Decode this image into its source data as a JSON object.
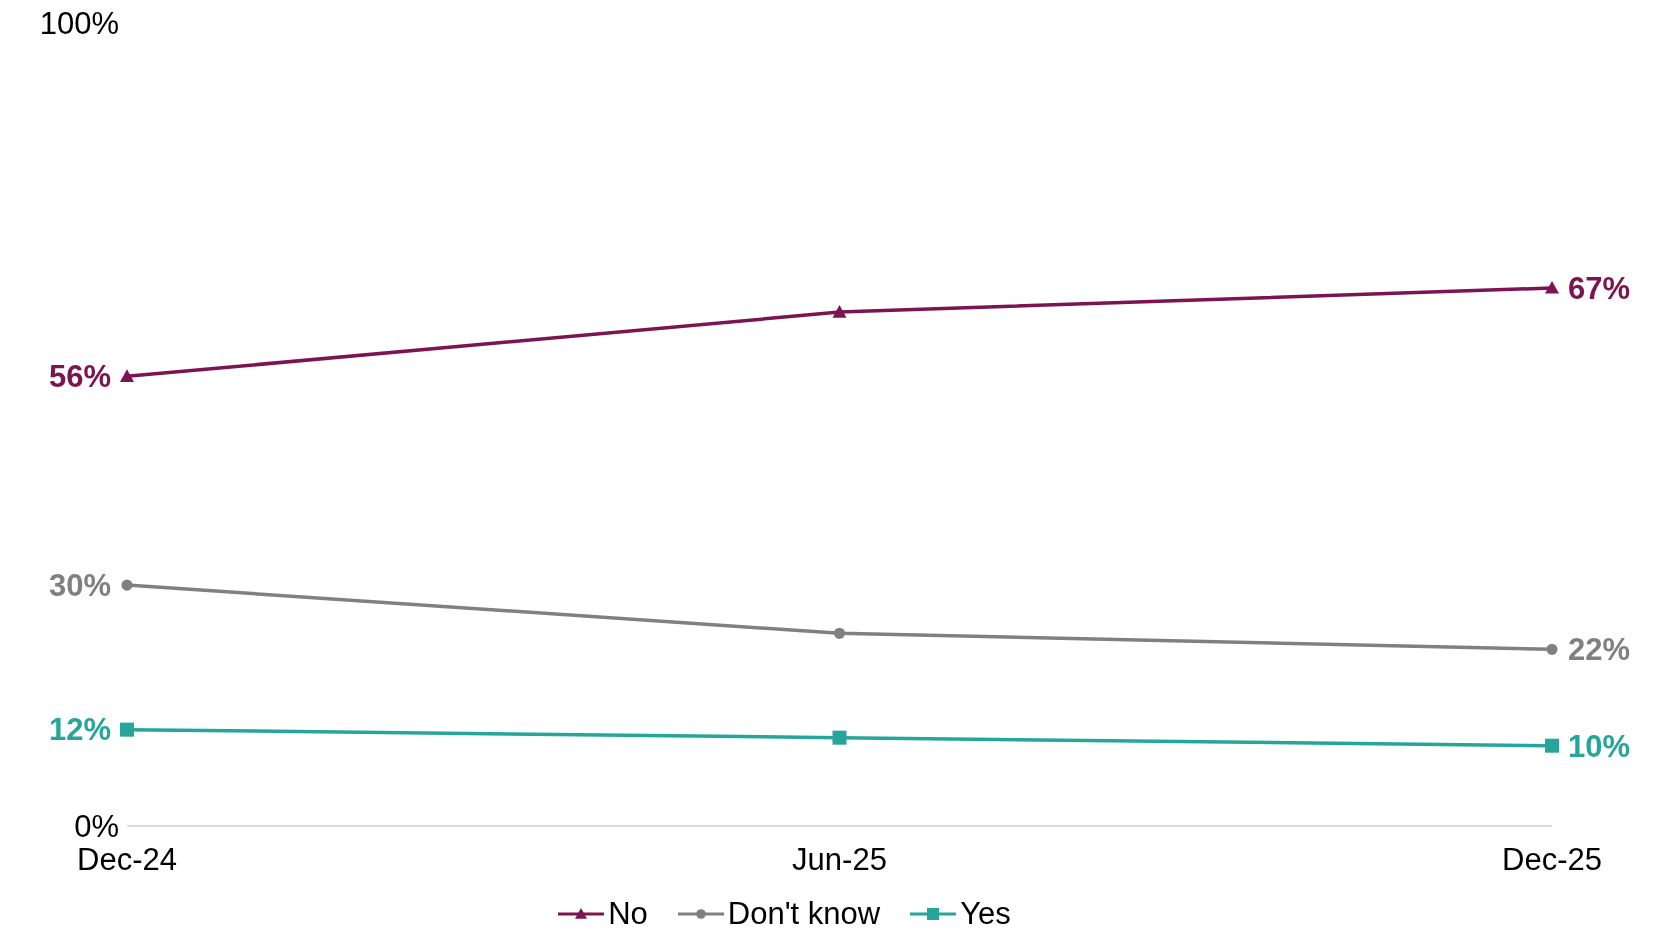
{
  "chart_data": {
    "type": "line",
    "categories": [
      "Dec-24",
      "Jun-25",
      "Dec-25"
    ],
    "series": [
      {
        "name": "No",
        "color": "#7b1450",
        "marker": "triangle",
        "values": [
          56,
          64,
          67
        ],
        "value_labels": [
          "56%",
          null,
          "67%"
        ]
      },
      {
        "name": "Don't know",
        "color": "#808080",
        "marker": "circle",
        "values": [
          30,
          24,
          22
        ],
        "value_labels": [
          "30%",
          null,
          "22%"
        ]
      },
      {
        "name": "Yes",
        "color": "#26a69a",
        "marker": "square",
        "values": [
          12,
          11,
          10
        ],
        "value_labels": [
          "12%",
          null,
          "10%"
        ]
      }
    ],
    "ylim": [
      0,
      100
    ],
    "yticks": [
      {
        "value": 0,
        "label": "0%"
      },
      {
        "value": 100,
        "label": "100%"
      }
    ],
    "grid": false,
    "legend": "bottom",
    "line_style": "solid"
  }
}
